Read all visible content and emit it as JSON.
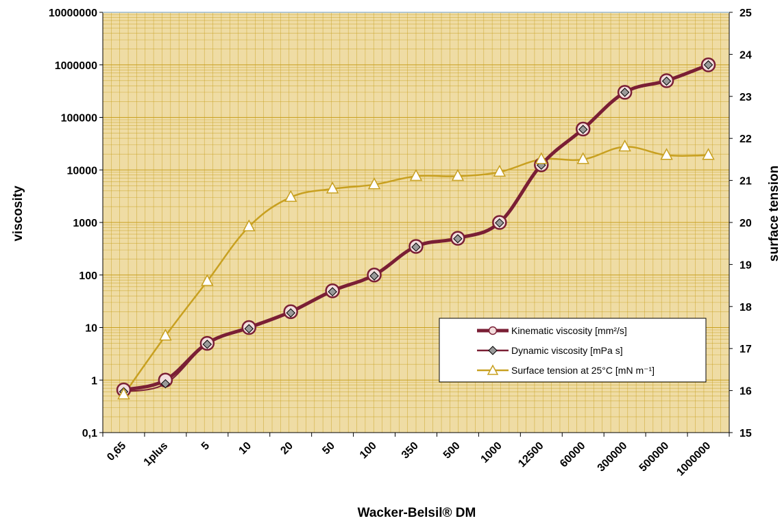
{
  "chart_data": {
    "type": "line",
    "xlabel": "Wacker-Belsil® DM",
    "ylabel_left": "viscosity",
    "ylabel_right": "surface tension",
    "categories": [
      "0,65",
      "1plus",
      "5",
      "10",
      "20",
      "50",
      "100",
      "350",
      "500",
      "1000",
      "12500",
      "60000",
      "300000",
      "500000",
      "1000000"
    ],
    "y_left": {
      "scale": "log",
      "ylim": [
        0.1,
        10000000
      ],
      "tick_labels": [
        "0,1",
        "1",
        "10",
        "100",
        "1000",
        "10000",
        "100000",
        "1000000",
        "10000000"
      ]
    },
    "y_right": {
      "scale": "linear",
      "ylim": [
        15,
        25
      ],
      "tick_labels": [
        "15",
        "16",
        "17",
        "18",
        "19",
        "20",
        "21",
        "22",
        "23",
        "24",
        "25"
      ]
    },
    "grid": true,
    "legend_position": "bottom-right",
    "series": [
      {
        "name": "Kinematic viscosity [mm²/s]",
        "axis": "left",
        "marker": "circle",
        "color": "#7a1f35",
        "values": [
          0.65,
          1,
          5,
          10,
          20,
          50,
          100,
          350,
          500,
          1000,
          12500,
          60000,
          300000,
          500000,
          1000000
        ]
      },
      {
        "name": "Dynamic viscosity [mPa s]",
        "axis": "left",
        "marker": "diamond",
        "color": "#7a1f35",
        "values": [
          0.6,
          0.85,
          4.8,
          9.5,
          19,
          48,
          96,
          340,
          490,
          980,
          12300,
          59000,
          300000,
          490000,
          1000000
        ]
      },
      {
        "name": "Surface tension at 25°C [mN m⁻¹]",
        "axis": "right",
        "marker": "triangle",
        "color": "#c8a020",
        "values": [
          15.9,
          17.3,
          18.6,
          19.9,
          20.6,
          20.8,
          20.9,
          21.1,
          21.1,
          21.2,
          21.5,
          21.5,
          21.8,
          21.6,
          21.6
        ]
      }
    ],
    "colors": {
      "plot_background": "#efdca4",
      "grid": "#c8a020",
      "kinematic": "#7a1f35",
      "dynamic": "#7a1f35",
      "surface": "#c8a020"
    }
  }
}
